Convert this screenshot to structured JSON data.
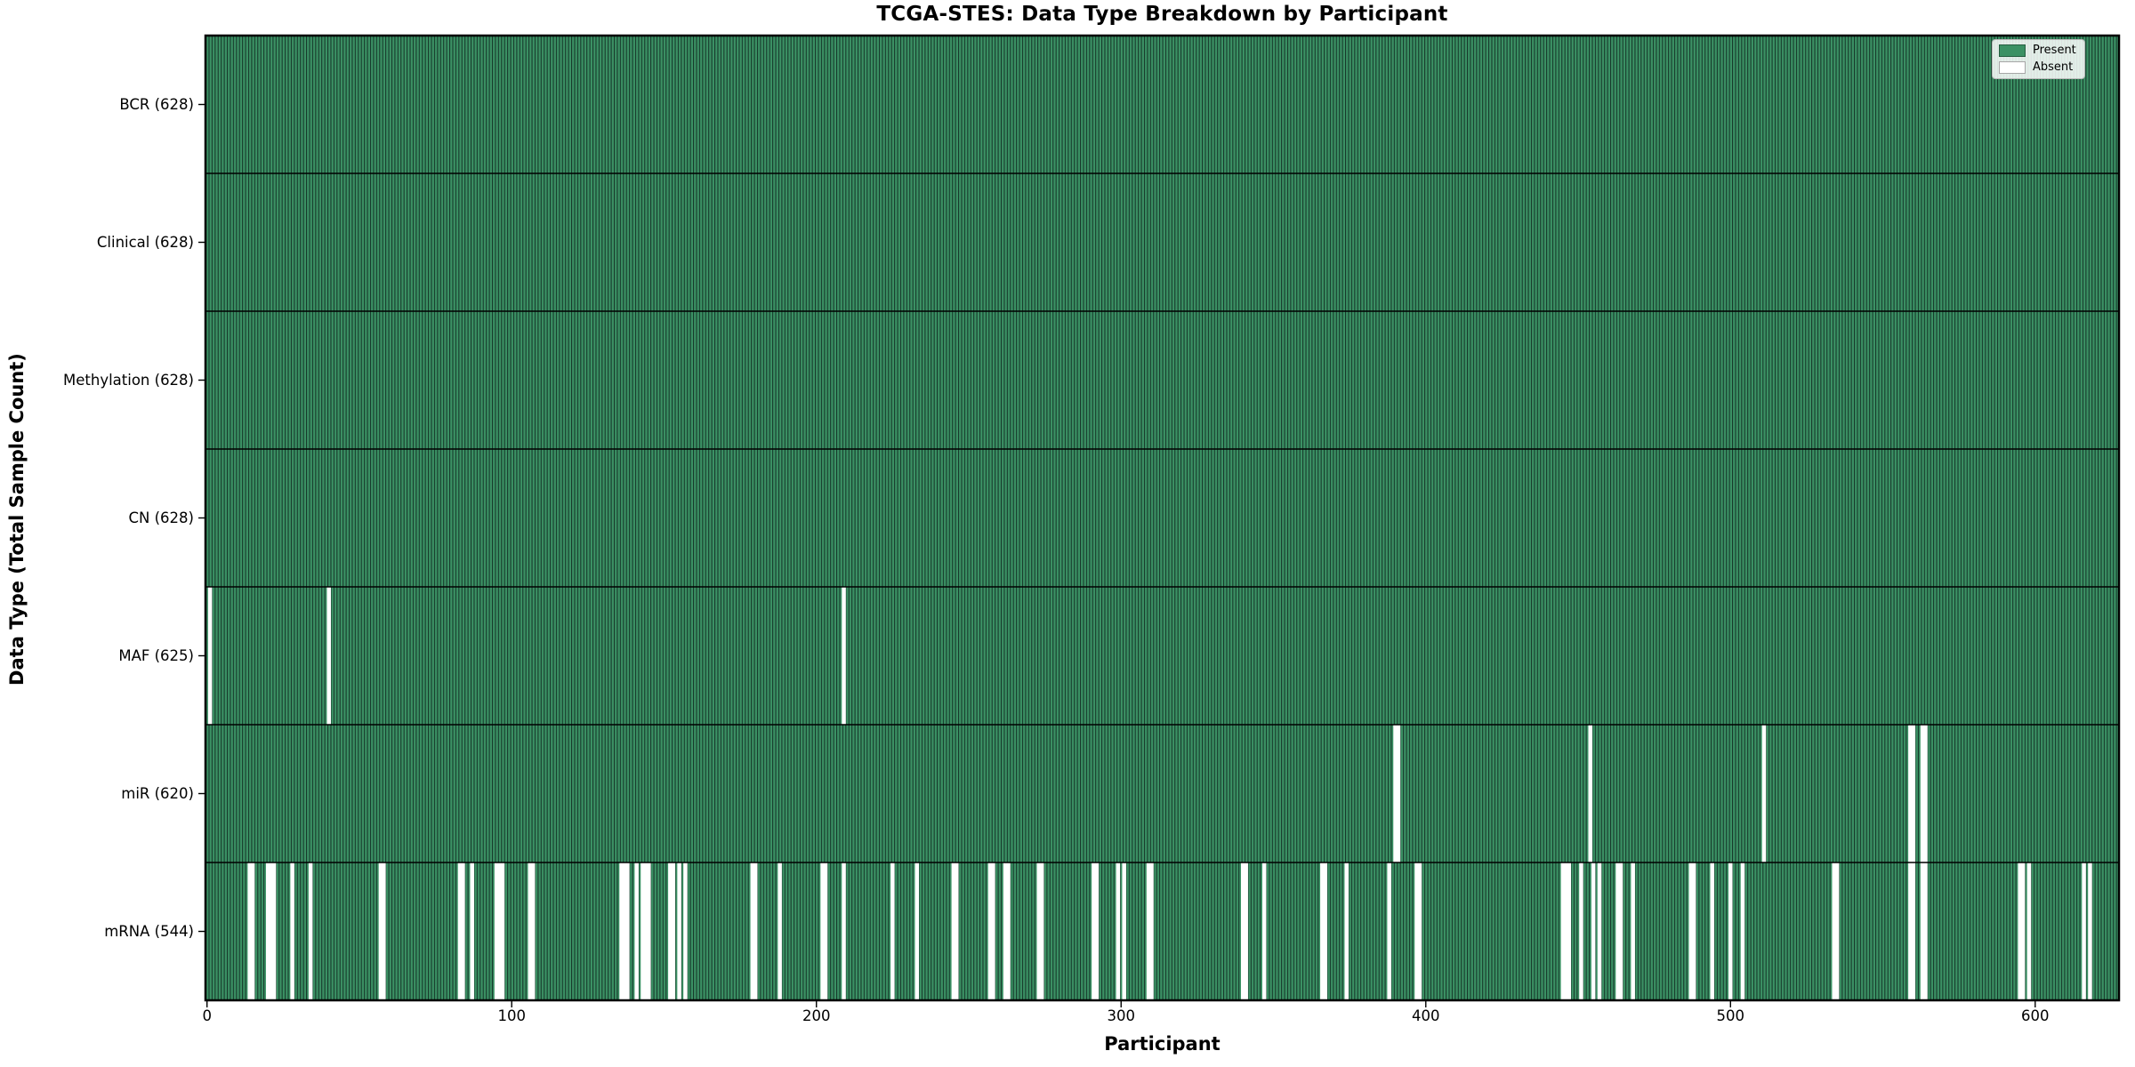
{
  "chart_data": {
    "type": "heatmap",
    "title": "TCGA-STES: Data Type Breakdown by Participant",
    "xlabel": "Participant",
    "ylabel": "Data Type (Total Sample Count)",
    "n_participants": 628,
    "x_ticks": [
      "0",
      "100",
      "200",
      "300",
      "400",
      "500",
      "600"
    ],
    "x_tick_values": [
      0,
      100,
      200,
      300,
      400,
      500,
      600
    ],
    "legend": {
      "present": "Present",
      "absent": "Absent"
    },
    "legend_position": "upper right",
    "grid": false,
    "colors": {
      "present": "#3b9164",
      "bar_edge": "#17392b",
      "absent": "#ffffff",
      "axis": "#000000",
      "row_divider": "#000000"
    },
    "rows": [
      {
        "label": "BCR (628)",
        "name": "BCR",
        "present_count": 628,
        "absent_participants": []
      },
      {
        "label": "Clinical (628)",
        "name": "Clinical",
        "present_count": 628,
        "absent_participants": []
      },
      {
        "label": "Methylation (628)",
        "name": "Methylation",
        "present_count": 628,
        "absent_participants": []
      },
      {
        "label": "CN (628)",
        "name": "CN",
        "present_count": 628,
        "absent_participants": []
      },
      {
        "label": "MAF (625)",
        "name": "MAF",
        "present_count": 625,
        "absent_participants": [
          1,
          40,
          209
        ]
      },
      {
        "label": "miR (620)",
        "name": "miR",
        "present_count": 620,
        "absent_participants": [
          390,
          391,
          454,
          511,
          559,
          560,
          563,
          564
        ]
      },
      {
        "label": "mRNA (544)",
        "name": "mRNA",
        "present_count": 544,
        "absent_participants": [
          14,
          15,
          20,
          21,
          22,
          28,
          34,
          57,
          58,
          83,
          84,
          87,
          95,
          96,
          97,
          106,
          107,
          136,
          137,
          138,
          141,
          143,
          144,
          145,
          152,
          153,
          155,
          157,
          179,
          180,
          188,
          202,
          203,
          209,
          225,
          233,
          245,
          246,
          257,
          258,
          262,
          263,
          273,
          274,
          291,
          292,
          299,
          301,
          309,
          310,
          340,
          341,
          347,
          366,
          367,
          374,
          388,
          397,
          398,
          445,
          446,
          447,
          451,
          455,
          457,
          463,
          464,
          468,
          487,
          488,
          494,
          500,
          504,
          534,
          535,
          559,
          560,
          563,
          564,
          595,
          596,
          598,
          616,
          618
        ]
      }
    ]
  }
}
